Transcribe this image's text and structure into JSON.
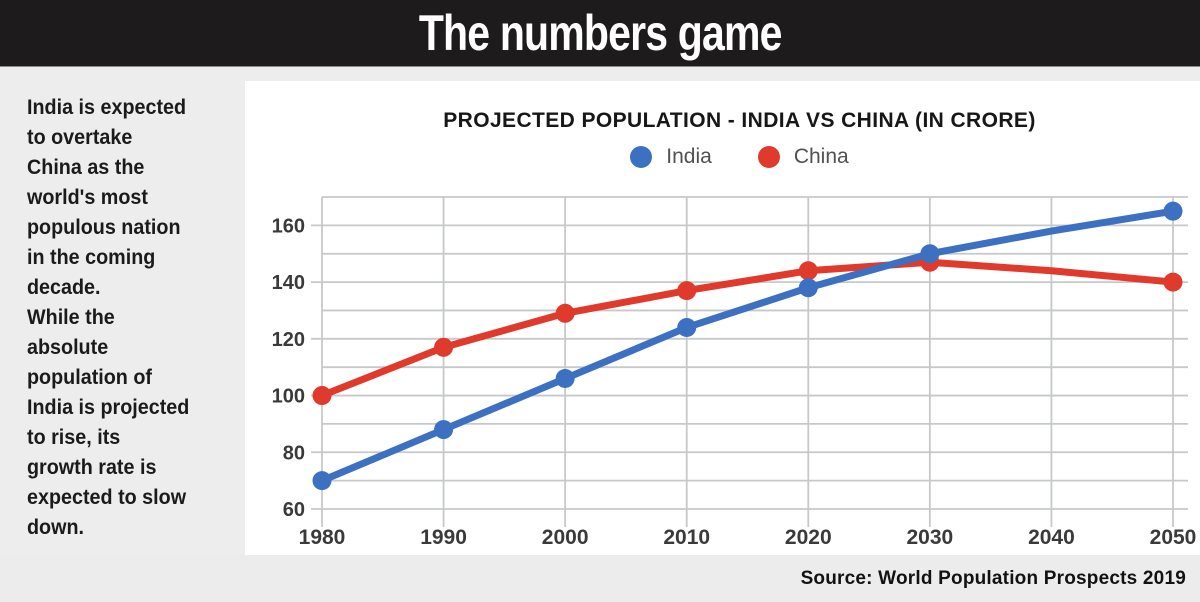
{
  "header": {
    "title": "The numbers game"
  },
  "sidebar": {
    "note": "India is expected\nto overtake\nChina as the\nworld's most\npopulous nation\nin the coming\ndecade.\nWhile the\nabsolute\npopulation of\nIndia is projected\nto rise, its\ngrowth rate is\nexpected to slow\ndown."
  },
  "chart": {
    "title": "PROJECTED POPULATION - INDIA VS CHINA (IN CRORE)",
    "legend": [
      {
        "label": "India",
        "color": "#3c70c1"
      },
      {
        "label": "China",
        "color": "#df3a2c"
      }
    ],
    "source": "Source: World Population Prospects 2019"
  },
  "chart_data": {
    "type": "line",
    "title": "PROJECTED POPULATION - INDIA VS CHINA (IN CRORE)",
    "xlabel": "",
    "ylabel": "",
    "x": [
      1980,
      1990,
      2000,
      2010,
      2020,
      2030,
      2040,
      2050
    ],
    "series": [
      {
        "name": "India",
        "color": "#3c70c1",
        "values": [
          70,
          88,
          106,
          124,
          138,
          150,
          158,
          165
        ],
        "markers": [
          true,
          true,
          true,
          true,
          true,
          true,
          false,
          true
        ]
      },
      {
        "name": "China",
        "color": "#df3a2c",
        "values": [
          100,
          117,
          129,
          137,
          144,
          147,
          144,
          140
        ],
        "markers": [
          true,
          true,
          true,
          true,
          true,
          true,
          false,
          true
        ]
      }
    ],
    "ylim": [
      60,
      170
    ],
    "ygrid_step": 10,
    "yticks_labeled": [
      60,
      80,
      100,
      120,
      140,
      160
    ],
    "grid": true,
    "legend_position": "top",
    "grid_color": "#c7c8ca",
    "axis_label_color": "#3a3a3a"
  }
}
